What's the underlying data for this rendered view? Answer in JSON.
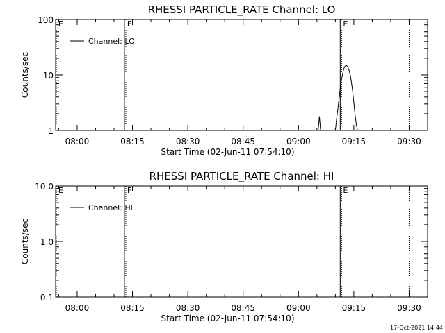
{
  "chart_data": [
    {
      "type": "line",
      "title": "RHESSI PARTICLE_RATE Channel: LO",
      "xlabel": "Start Time (02-Jun-11 07:54:10)",
      "ylabel": "Counts/sec",
      "yscale": "log",
      "ylim": [
        1,
        100
      ],
      "yticks": [
        1,
        10,
        100
      ],
      "ytick_labels": [
        "1",
        "10",
        "100"
      ],
      "xlim": [
        "07:54:10",
        "09:35:00"
      ],
      "xtick_labels": [
        "08:00",
        "08:15",
        "08:30",
        "08:45",
        "09:00",
        "09:15",
        "09:30"
      ],
      "legend": {
        "placement": "top-left",
        "label": "Channel: LO"
      },
      "markers": [
        {
          "label": "E",
          "time": "07:54:10",
          "style": "dotted"
        },
        {
          "label": "F",
          "time": "08:13:00",
          "style": "solid"
        },
        {
          "label": "E",
          "time": "09:11:30",
          "style": "solid"
        },
        {
          "label": "",
          "time": "09:30:00",
          "style": "dotted"
        }
      ],
      "series": [
        {
          "name": "Channel: LO",
          "segments": [
            [
              [
                "09:05:20",
                1
              ],
              [
                "09:05:40",
                1.8
              ],
              [
                "09:06:00",
                1
              ]
            ],
            [
              [
                "09:10:00",
                1
              ],
              [
                "09:10:20",
                1.6
              ],
              [
                "09:10:40",
                2.4
              ],
              [
                "09:11:00",
                3.8
              ],
              [
                "09:11:20",
                5.8
              ],
              [
                "09:11:40",
                8.2
              ],
              [
                "09:12:00",
                10.8
              ],
              [
                "09:12:20",
                13.2
              ],
              [
                "09:12:40",
                14.6
              ],
              [
                "09:13:00",
                14.8
              ],
              [
                "09:13:20",
                14.2
              ],
              [
                "09:13:40",
                12.4
              ],
              [
                "09:14:00",
                10.2
              ],
              [
                "09:14:20",
                7.6
              ],
              [
                "09:14:40",
                5.2
              ],
              [
                "09:15:00",
                3.2
              ],
              [
                "09:15:20",
                1.9
              ],
              [
                "09:15:40",
                1.3
              ],
              [
                "09:16:00",
                1
              ]
            ]
          ]
        }
      ]
    },
    {
      "type": "line",
      "title": "RHESSI PARTICLE_RATE Channel: HI",
      "xlabel": "Start Time (02-Jun-11 07:54:10)",
      "ylabel": "Counts/sec",
      "yscale": "log",
      "ylim": [
        0.1,
        10
      ],
      "yticks": [
        0.1,
        1,
        10
      ],
      "ytick_labels": [
        "0.1",
        "1.0",
        "10.0"
      ],
      "xlim": [
        "07:54:10",
        "09:35:00"
      ],
      "xtick_labels": [
        "08:00",
        "08:15",
        "08:30",
        "08:45",
        "09:00",
        "09:15",
        "09:30"
      ],
      "legend": {
        "placement": "top-left",
        "label": "Channel: HI"
      },
      "markers": [
        {
          "label": "E",
          "time": "07:54:10",
          "style": "dotted"
        },
        {
          "label": "F",
          "time": "08:13:00",
          "style": "solid"
        },
        {
          "label": "E",
          "time": "09:11:30",
          "style": "solid"
        },
        {
          "label": "",
          "time": "09:30:00",
          "style": "dotted"
        }
      ],
      "series": [
        {
          "name": "Channel: HI",
          "segments": []
        }
      ]
    }
  ],
  "footer": {
    "timestamp": "17-Oct-2021 14:44"
  }
}
